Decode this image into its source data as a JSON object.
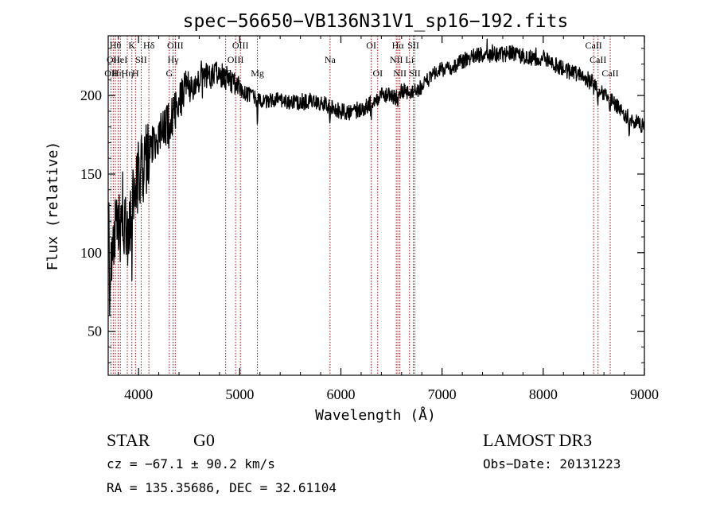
{
  "chart_data": {
    "type": "line",
    "title": "spec−56650−VB136N31V1_sp16−192.fits",
    "xlabel": "Wavelength (Å)",
    "ylabel": "Flux (relative)",
    "xlim": [
      3700,
      9000
    ],
    "ylim": [
      22,
      238
    ],
    "x_ticks": [
      4000,
      5000,
      6000,
      7000,
      8000,
      9000
    ],
    "y_ticks": [
      50,
      100,
      150,
      200
    ],
    "line_color": "#000000",
    "marker_color": "#a01010",
    "spectrum_knots": [
      [
        3700,
        130
      ],
      [
        3720,
        90
      ],
      [
        3760,
        110
      ],
      [
        3800,
        115
      ],
      [
        3850,
        120
      ],
      [
        3900,
        105
      ],
      [
        3950,
        140
      ],
      [
        4000,
        150
      ],
      [
        4050,
        155
      ],
      [
        4100,
        165
      ],
      [
        4150,
        170
      ],
      [
        4200,
        175
      ],
      [
        4250,
        180
      ],
      [
        4300,
        183
      ],
      [
        4350,
        190
      ],
      [
        4400,
        195
      ],
      [
        4450,
        205
      ],
      [
        4500,
        202
      ],
      [
        4600,
        210
      ],
      [
        4700,
        212
      ],
      [
        4800,
        214
      ],
      [
        4850,
        212
      ],
      [
        4900,
        210
      ],
      [
        5000,
        204
      ],
      [
        5100,
        200
      ],
      [
        5200,
        196
      ],
      [
        5300,
        197
      ],
      [
        5400,
        198
      ],
      [
        5500,
        196
      ],
      [
        5600,
        195
      ],
      [
        5700,
        197
      ],
      [
        5800,
        195
      ],
      [
        5900,
        193
      ],
      [
        6000,
        190
      ],
      [
        6100,
        189
      ],
      [
        6200,
        190
      ],
      [
        6300,
        196
      ],
      [
        6400,
        200
      ],
      [
        6500,
        200
      ],
      [
        6560,
        198
      ],
      [
        6600,
        203
      ],
      [
        6700,
        202
      ],
      [
        6800,
        205
      ],
      [
        6900,
        213
      ],
      [
        7000,
        217
      ],
      [
        7100,
        218
      ],
      [
        7200,
        222
      ],
      [
        7300,
        225
      ],
      [
        7400,
        226
      ],
      [
        7500,
        226
      ],
      [
        7600,
        226
      ],
      [
        7700,
        227
      ],
      [
        7800,
        225
      ],
      [
        7900,
        224
      ],
      [
        8000,
        224
      ],
      [
        8100,
        220
      ],
      [
        8200,
        217
      ],
      [
        8300,
        214
      ],
      [
        8400,
        212
      ],
      [
        8500,
        208
      ],
      [
        8600,
        200
      ],
      [
        8700,
        196
      ],
      [
        8800,
        188
      ],
      [
        8900,
        184
      ],
      [
        9000,
        180
      ]
    ],
    "lines": [
      {
        "w": 3728,
        "label": "OII",
        "row": 2
      },
      {
        "w": 3750,
        "label": "OII",
        "row": 1
      },
      {
        "w": 3771,
        "label": "Hθ",
        "row": 0
      },
      {
        "w": 3798,
        "label": "Hη",
        "row": 2
      },
      {
        "w": 3820,
        "label": "HeI",
        "row": 1
      },
      {
        "w": 3889,
        "label": "Hη",
        "row": 2
      },
      {
        "w": 3934,
        "label": "K",
        "row": 0
      },
      {
        "w": 3970,
        "label": "H",
        "row": 2
      },
      {
        "w": 4026,
        "label": "SII",
        "row": 1
      },
      {
        "w": 4102,
        "label": "Hδ",
        "row": 0
      },
      {
        "w": 4304,
        "label": "G",
        "row": 2
      },
      {
        "w": 4341,
        "label": "Hγ",
        "row": 1
      },
      {
        "w": 4363,
        "label": "OIII",
        "row": 0
      },
      {
        "w": 4861,
        "label": "Hβ",
        "row": 2
      },
      {
        "w": 4959,
        "label": "OIII",
        "row": 1
      },
      {
        "w": 5007,
        "label": "OIII",
        "row": 0
      },
      {
        "w": 5175,
        "label": "Mg",
        "row": 2
      },
      {
        "w": 5893,
        "label": "Na",
        "row": 1
      },
      {
        "w": 6300,
        "label": "OI",
        "row": 0
      },
      {
        "w": 6364,
        "label": "OI",
        "row": 2
      },
      {
        "w": 6548,
        "label": "NII",
        "row": 1
      },
      {
        "w": 6563,
        "label": "Hα",
        "row": 0
      },
      {
        "w": 6583,
        "label": "NII",
        "row": 2
      },
      {
        "w": 6678,
        "label": "Li",
        "row": 1
      },
      {
        "w": 6716,
        "label": "SII",
        "row": 0
      },
      {
        "w": 6731,
        "label": "SII",
        "row": 2
      },
      {
        "w": 8498,
        "label": "CaII",
        "row": 0
      },
      {
        "w": 8542,
        "label": "CaII",
        "row": 1
      },
      {
        "w": 8662,
        "label": "CaII",
        "row": 2
      }
    ]
  },
  "info": {
    "class": "STAR",
    "subclass": "G0",
    "survey": "LAMOST DR3",
    "cz": "cz = −67.1 ± 90.2 km/s",
    "obs_date": "Obs−Date: 20131223",
    "radec": "RA = 135.35686, DEC =  32.61104"
  }
}
